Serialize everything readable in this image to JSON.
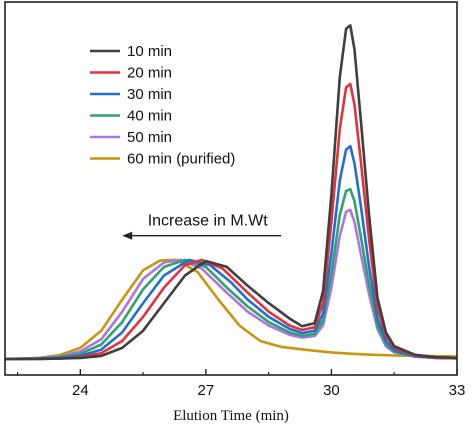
{
  "chart_data": {
    "type": "line",
    "title": "",
    "xlabel": "Elution Time (min)",
    "ylabel": "",
    "xlim": [
      22.2,
      33.0
    ],
    "ylim": [
      0,
      1.0
    ],
    "xticks": [
      24,
      27,
      30,
      33
    ],
    "tick_labels": [
      "24",
      "27",
      "30",
      "33"
    ],
    "grid": false,
    "legend_position": "top-left",
    "annotation": {
      "text": "Increase in M.Wt",
      "arrow_from_x": 28.8,
      "arrow_to_x": 25.0,
      "y": 0.34
    },
    "series": [
      {
        "name": "10 min",
        "color": "#3f3f3f",
        "points": [
          [
            22.2,
            0.003
          ],
          [
            23.0,
            0.003
          ],
          [
            23.5,
            0.004
          ],
          [
            24.0,
            0.006
          ],
          [
            24.5,
            0.012
          ],
          [
            25.0,
            0.035
          ],
          [
            25.5,
            0.085
          ],
          [
            26.0,
            0.165
          ],
          [
            26.5,
            0.245
          ],
          [
            27.0,
            0.287
          ],
          [
            27.5,
            0.27
          ],
          [
            28.0,
            0.215
          ],
          [
            28.5,
            0.165
          ],
          [
            29.0,
            0.12
          ],
          [
            29.3,
            0.098
          ],
          [
            29.6,
            0.107
          ],
          [
            29.8,
            0.2
          ],
          [
            30.0,
            0.48
          ],
          [
            30.2,
            0.82
          ],
          [
            30.35,
            0.96
          ],
          [
            30.45,
            0.97
          ],
          [
            30.55,
            0.9
          ],
          [
            30.7,
            0.7
          ],
          [
            30.9,
            0.42
          ],
          [
            31.1,
            0.18
          ],
          [
            31.3,
            0.08
          ],
          [
            31.5,
            0.04
          ],
          [
            32.0,
            0.015
          ],
          [
            32.5,
            0.008
          ],
          [
            33.0,
            0.006
          ]
        ]
      },
      {
        "name": "20 min",
        "color": "#e8303a",
        "points": [
          [
            22.2,
            0.003
          ],
          [
            23.0,
            0.003
          ],
          [
            23.5,
            0.004
          ],
          [
            24.0,
            0.008
          ],
          [
            24.5,
            0.02
          ],
          [
            25.0,
            0.055
          ],
          [
            25.5,
            0.125
          ],
          [
            26.0,
            0.21
          ],
          [
            26.5,
            0.275
          ],
          [
            26.9,
            0.29
          ],
          [
            27.4,
            0.265
          ],
          [
            28.0,
            0.195
          ],
          [
            28.5,
            0.14
          ],
          [
            29.0,
            0.1
          ],
          [
            29.3,
            0.087
          ],
          [
            29.6,
            0.095
          ],
          [
            29.8,
            0.165
          ],
          [
            30.0,
            0.4
          ],
          [
            30.2,
            0.67
          ],
          [
            30.35,
            0.79
          ],
          [
            30.45,
            0.8
          ],
          [
            30.55,
            0.74
          ],
          [
            30.7,
            0.58
          ],
          [
            30.9,
            0.35
          ],
          [
            31.1,
            0.15
          ],
          [
            31.3,
            0.07
          ],
          [
            31.5,
            0.035
          ],
          [
            32.0,
            0.013
          ],
          [
            32.5,
            0.007
          ],
          [
            33.0,
            0.005
          ]
        ]
      },
      {
        "name": "30 min",
        "color": "#1f6fd6",
        "points": [
          [
            22.2,
            0.003
          ],
          [
            23.0,
            0.004
          ],
          [
            23.5,
            0.006
          ],
          [
            24.0,
            0.012
          ],
          [
            24.5,
            0.03
          ],
          [
            25.0,
            0.08
          ],
          [
            25.5,
            0.165
          ],
          [
            26.0,
            0.245
          ],
          [
            26.6,
            0.29
          ],
          [
            27.1,
            0.275
          ],
          [
            27.6,
            0.225
          ],
          [
            28.0,
            0.175
          ],
          [
            28.5,
            0.125
          ],
          [
            29.0,
            0.09
          ],
          [
            29.3,
            0.078
          ],
          [
            29.6,
            0.085
          ],
          [
            29.8,
            0.135
          ],
          [
            30.0,
            0.31
          ],
          [
            30.2,
            0.52
          ],
          [
            30.35,
            0.61
          ],
          [
            30.45,
            0.62
          ],
          [
            30.55,
            0.57
          ],
          [
            30.7,
            0.45
          ],
          [
            30.9,
            0.27
          ],
          [
            31.1,
            0.12
          ],
          [
            31.3,
            0.055
          ],
          [
            31.5,
            0.028
          ],
          [
            32.0,
            0.011
          ],
          [
            32.5,
            0.006
          ],
          [
            33.0,
            0.005
          ]
        ]
      },
      {
        "name": "40 min",
        "color": "#2ea36a",
        "points": [
          [
            22.2,
            0.003
          ],
          [
            23.0,
            0.004
          ],
          [
            23.5,
            0.008
          ],
          [
            24.0,
            0.018
          ],
          [
            24.5,
            0.045
          ],
          [
            25.0,
            0.11
          ],
          [
            25.5,
            0.205
          ],
          [
            26.0,
            0.27
          ],
          [
            26.5,
            0.29
          ],
          [
            27.0,
            0.27
          ],
          [
            27.5,
            0.21
          ],
          [
            28.0,
            0.155
          ],
          [
            28.5,
            0.11
          ],
          [
            29.0,
            0.08
          ],
          [
            29.3,
            0.07
          ],
          [
            29.6,
            0.076
          ],
          [
            29.8,
            0.115
          ],
          [
            30.0,
            0.25
          ],
          [
            30.2,
            0.42
          ],
          [
            30.35,
            0.49
          ],
          [
            30.45,
            0.495
          ],
          [
            30.55,
            0.46
          ],
          [
            30.7,
            0.36
          ],
          [
            30.9,
            0.22
          ],
          [
            31.1,
            0.1
          ],
          [
            31.3,
            0.045
          ],
          [
            31.5,
            0.024
          ],
          [
            32.0,
            0.01
          ],
          [
            32.5,
            0.006
          ],
          [
            33.0,
            0.005
          ]
        ]
      },
      {
        "name": "50 min",
        "color": "#b073e6",
        "points": [
          [
            22.2,
            0.003
          ],
          [
            23.0,
            0.005
          ],
          [
            23.5,
            0.01
          ],
          [
            24.0,
            0.025
          ],
          [
            24.5,
            0.06
          ],
          [
            25.0,
            0.14
          ],
          [
            25.5,
            0.235
          ],
          [
            26.0,
            0.283
          ],
          [
            26.4,
            0.29
          ],
          [
            26.9,
            0.265
          ],
          [
            27.5,
            0.195
          ],
          [
            28.0,
            0.14
          ],
          [
            28.5,
            0.1
          ],
          [
            29.0,
            0.073
          ],
          [
            29.3,
            0.065
          ],
          [
            29.6,
            0.07
          ],
          [
            29.8,
            0.1
          ],
          [
            30.0,
            0.21
          ],
          [
            30.2,
            0.36
          ],
          [
            30.35,
            0.43
          ],
          [
            30.45,
            0.435
          ],
          [
            30.55,
            0.4
          ],
          [
            30.7,
            0.31
          ],
          [
            30.9,
            0.19
          ],
          [
            31.1,
            0.09
          ],
          [
            31.3,
            0.04
          ],
          [
            31.5,
            0.022
          ],
          [
            32.0,
            0.01
          ],
          [
            32.5,
            0.006
          ],
          [
            33.0,
            0.005
          ]
        ]
      },
      {
        "name": "60 min (purified)",
        "color": "#c8960c",
        "points": [
          [
            22.2,
            0.003
          ],
          [
            23.0,
            0.006
          ],
          [
            23.5,
            0.014
          ],
          [
            24.0,
            0.035
          ],
          [
            24.5,
            0.085
          ],
          [
            25.0,
            0.175
          ],
          [
            25.5,
            0.26
          ],
          [
            25.9,
            0.288
          ],
          [
            26.3,
            0.29
          ],
          [
            26.8,
            0.255
          ],
          [
            27.3,
            0.175
          ],
          [
            27.8,
            0.1
          ],
          [
            28.3,
            0.055
          ],
          [
            28.8,
            0.038
          ],
          [
            29.5,
            0.028
          ],
          [
            30.0,
            0.022
          ],
          [
            30.5,
            0.018
          ],
          [
            31.0,
            0.015
          ],
          [
            31.5,
            0.013
          ],
          [
            32.0,
            0.012
          ],
          [
            32.5,
            0.011
          ],
          [
            33.0,
            0.01
          ]
        ]
      }
    ]
  }
}
